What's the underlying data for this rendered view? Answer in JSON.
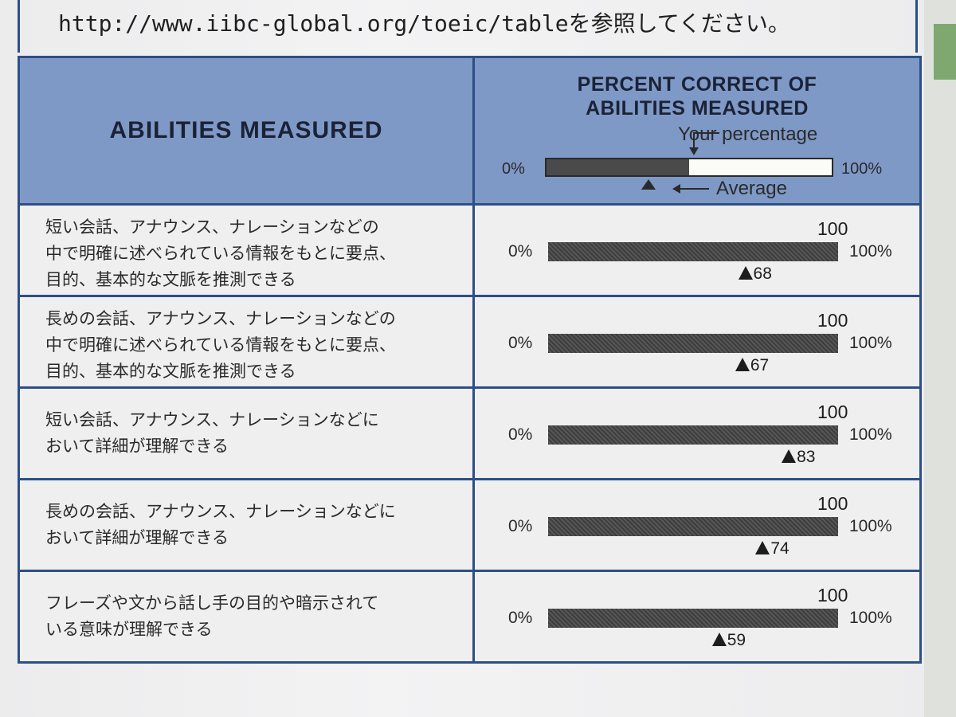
{
  "url_line": {
    "url": "http://www.iibc-global.org/toeic/table",
    "suffix": "を参照してください。"
  },
  "header": {
    "left": "ABILITIES MEASURED",
    "right_title_line1": "PERCENT CORRECT OF",
    "right_title_line2": "ABILITIES MEASURED"
  },
  "legend": {
    "min_label": "0%",
    "max_label": "100%",
    "your_label": "Your percentage",
    "avg_label": "Average",
    "fill_fraction": 0.5,
    "avg_fraction": 0.36
  },
  "rows": [
    {
      "lines": [
        "短い会話、アナウンス、ナレーションなどの",
        "中で明確に述べられている情報をもとに要点、",
        "目的、基本的な文脈を推測できる"
      ],
      "score": 100,
      "score_label": "100",
      "avg": 68,
      "avg_label": "68",
      "min_label": "0%",
      "max_label": "100%"
    },
    {
      "lines": [
        "長めの会話、アナウンス、ナレーションなどの",
        "中で明確に述べられている情報をもとに要点、",
        "目的、基本的な文脈を推測できる"
      ],
      "score": 100,
      "score_label": "100",
      "avg": 67,
      "avg_label": "67",
      "min_label": "0%",
      "max_label": "100%"
    },
    {
      "lines": [
        "短い会話、アナウンス、ナレーションなどに",
        "おいて詳細が理解できる"
      ],
      "score": 100,
      "score_label": "100",
      "avg": 83,
      "avg_label": "83",
      "min_label": "0%",
      "max_label": "100%"
    },
    {
      "lines": [
        "長めの会話、アナウンス、ナレーションなどに",
        "おいて詳細が理解できる"
      ],
      "score": 100,
      "score_label": "100",
      "avg": 74,
      "avg_label": "74",
      "min_label": "0%",
      "max_label": "100%"
    },
    {
      "lines": [
        "フレーズや文から話し手の目的や暗示されて",
        "いる意味が理解できる"
      ],
      "score": 100,
      "score_label": "100",
      "avg": 59,
      "avg_label": "59",
      "min_label": "0%",
      "max_label": "100%"
    }
  ]
}
